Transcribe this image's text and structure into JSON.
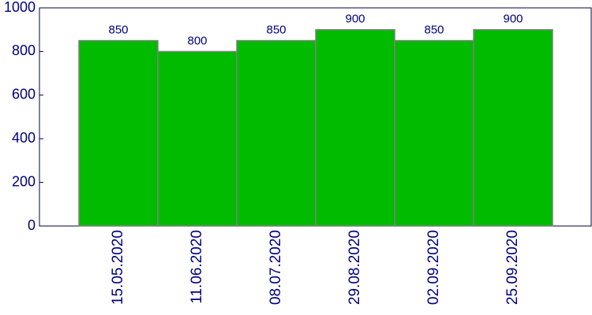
{
  "chart_data": {
    "type": "bar",
    "categories": [
      "15.05.2020",
      "11.06.2020",
      "08.07.2020",
      "29.08.2020",
      "02.09.2020",
      "25.09.2020"
    ],
    "values": [
      850,
      800,
      850,
      900,
      850,
      900
    ],
    "color": "#00bb00",
    "ylim": [
      0,
      1000
    ],
    "yticks": [
      0,
      200,
      400,
      600,
      800,
      1000
    ],
    "grid": false
  }
}
